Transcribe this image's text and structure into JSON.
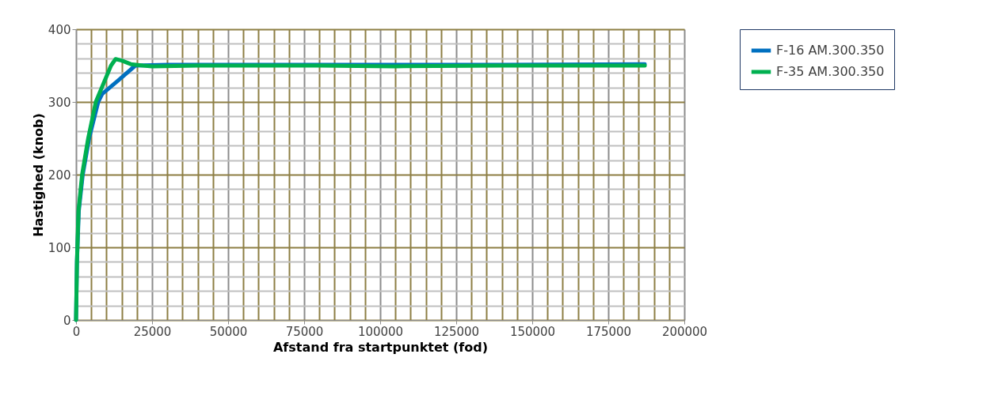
{
  "chart_data": {
    "type": "line",
    "xlabel": "Afstand fra startpunktet (fod)",
    "ylabel": "Hastighed (knob)",
    "xlim": [
      0,
      200000
    ],
    "xticks": [
      0,
      25000,
      50000,
      75000,
      100000,
      125000,
      150000,
      175000,
      200000
    ],
    "ylim": [
      0,
      400
    ],
    "yticks": [
      0,
      100,
      200,
      300,
      400
    ],
    "grid": true,
    "legend": "right",
    "marker": "none",
    "line_style": "solid",
    "series": [
      {
        "name": "F-16 AM.300.350",
        "color": "#0070c0",
        "x": [
          0,
          300,
          900,
          2200,
          4300,
          7300,
          8600,
          14000,
          19500,
          30000,
          60000,
          100000,
          140000,
          187000
        ],
        "values": [
          0,
          80,
          150,
          200,
          250,
          300,
          311,
          330,
          350,
          351,
          351,
          351,
          351,
          352
        ]
      },
      {
        "name": "F-35 AM.300.350",
        "color": "#00b050",
        "x": [
          0,
          300,
          800,
          2000,
          4000,
          6500,
          9000,
          11500,
          13000,
          15000,
          18000,
          22000,
          25000,
          40000,
          60000,
          80000,
          105000,
          140000,
          187000
        ],
        "values": [
          0,
          80,
          150,
          200,
          250,
          300,
          325,
          350,
          359,
          357,
          352,
          350,
          349,
          350,
          350,
          350,
          349,
          350,
          350
        ]
      }
    ]
  }
}
